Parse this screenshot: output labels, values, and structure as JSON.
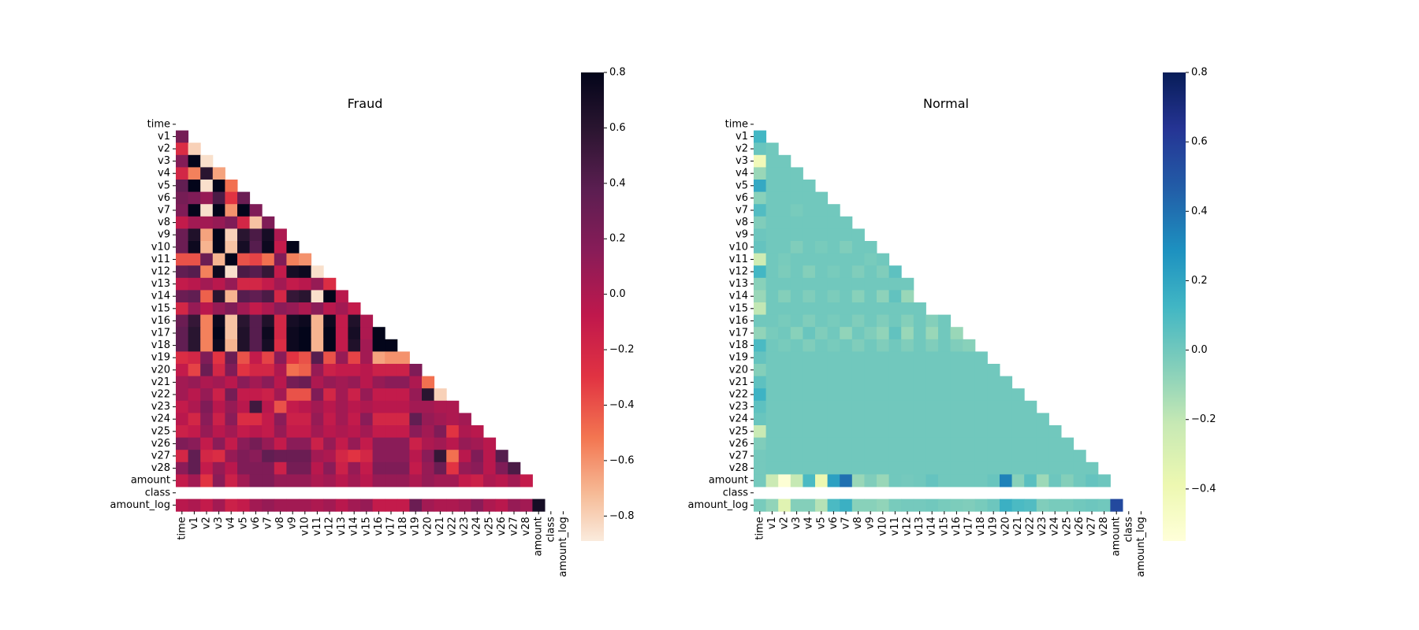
{
  "features": [
    "time",
    "v1",
    "v2",
    "v3",
    "v4",
    "v5",
    "v6",
    "v7",
    "v8",
    "v9",
    "v10",
    "v11",
    "v12",
    "v13",
    "v14",
    "v15",
    "v16",
    "v17",
    "v18",
    "v19",
    "v20",
    "v21",
    "v22",
    "v23",
    "v24",
    "v25",
    "v26",
    "v27",
    "v28",
    "amount",
    "class",
    "amount_log"
  ],
  "chart_data": [
    {
      "type": "heatmap",
      "title": "Fraud",
      "colormap": "rocket_r",
      "mask": "upper-triangle",
      "vmin": -0.89,
      "vmax": 0.8,
      "colorbar_ticks": [
        0.8,
        0.6,
        0.4,
        0.2,
        0.0,
        -0.2,
        -0.4,
        -0.6,
        -0.8
      ],
      "colorbar_tick_labels": [
        "0.8",
        "0.6",
        "0.4",
        "0.2",
        "0.0",
        "−0.2",
        "−0.4",
        "−0.6",
        "−0.8"
      ],
      "xlabels": [
        "time",
        "v1",
        "v2",
        "v3",
        "v4",
        "v5",
        "v6",
        "v7",
        "v8",
        "v9",
        "v10",
        "v11",
        "v12",
        "v13",
        "v14",
        "v15",
        "v16",
        "v17",
        "v18",
        "v19",
        "v20",
        "v21",
        "v22",
        "v23",
        "v24",
        "v25",
        "v26",
        "v27",
        "v28",
        "amount",
        "class",
        "amount_log"
      ],
      "ylabels": [
        "time",
        "v1",
        "v2",
        "v3",
        "v4",
        "v5",
        "v6",
        "v7",
        "v8",
        "v9",
        "v10",
        "v11",
        "v12",
        "v13",
        "v14",
        "v15",
        "v16",
        "v17",
        "v18",
        "v19",
        "v20",
        "v21",
        "v22",
        "v23",
        "v24",
        "v25",
        "v26",
        "v27",
        "v28",
        "amount",
        "class",
        "amount_log"
      ],
      "missing_row": "class",
      "rows": [
        [],
        [
          0.25
        ],
        [
          -0.25,
          -0.8
        ],
        [
          0.18,
          0.8,
          -0.85
        ],
        [
          -0.2,
          -0.55,
          0.6,
          -0.65
        ],
        [
          0.35,
          0.8,
          -0.85,
          0.8,
          -0.5
        ],
        [
          0.25,
          0.2,
          0.1,
          0.45,
          -0.3,
          0.3
        ],
        [
          0.2,
          0.8,
          -0.85,
          0.8,
          -0.6,
          0.8,
          0.2
        ],
        [
          -0.1,
          0.05,
          0.05,
          0.1,
          0.2,
          -0.2,
          -0.75,
          0.2
        ],
        [
          0.3,
          0.65,
          -0.65,
          0.8,
          -0.8,
          0.6,
          0.45,
          0.7,
          0.0
        ],
        [
          0.3,
          0.75,
          -0.7,
          0.8,
          -0.75,
          0.7,
          0.4,
          0.75,
          -0.1,
          0.8
        ],
        [
          -0.4,
          -0.4,
          0.3,
          -0.7,
          0.8,
          -0.4,
          -0.35,
          -0.5,
          0.2,
          -0.55,
          -0.6
        ],
        [
          0.35,
          0.4,
          -0.55,
          0.75,
          -0.85,
          0.45,
          0.4,
          0.55,
          -0.1,
          0.7,
          0.75,
          -0.85
        ],
        [
          -0.1,
          -0.05,
          0.05,
          -0.05,
          0.1,
          -0.2,
          -0.2,
          -0.1,
          0.05,
          -0.1,
          -0.05,
          0.1,
          -0.25
        ],
        [
          0.3,
          0.35,
          -0.45,
          0.6,
          -0.7,
          0.4,
          0.35,
          0.45,
          -0.2,
          0.55,
          0.6,
          -0.85,
          0.8,
          -0.05
        ],
        [
          -0.2,
          0.1,
          -0.05,
          0.1,
          0.2,
          0.05,
          -0.1,
          0.0,
          0.15,
          0.1,
          0.0,
          0.15,
          -0.05,
          0.05,
          -0.1
        ],
        [
          0.3,
          0.55,
          -0.55,
          0.75,
          -0.75,
          0.6,
          0.4,
          0.65,
          -0.2,
          0.7,
          0.75,
          -0.7,
          0.75,
          -0.1,
          0.65,
          0.0
        ],
        [
          0.35,
          0.6,
          -0.55,
          0.8,
          -0.75,
          0.65,
          0.4,
          0.75,
          -0.2,
          0.75,
          0.8,
          -0.7,
          0.8,
          -0.1,
          0.7,
          0.0,
          0.8
        ],
        [
          0.35,
          0.6,
          -0.55,
          0.75,
          -0.7,
          0.65,
          0.4,
          0.7,
          -0.25,
          0.75,
          0.8,
          -0.7,
          0.8,
          -0.1,
          0.65,
          0.05,
          0.8,
          0.8
        ],
        [
          -0.25,
          -0.2,
          0.2,
          -0.3,
          0.3,
          -0.4,
          -0.1,
          -0.35,
          0.15,
          -0.3,
          -0.4,
          0.4,
          -0.4,
          0.1,
          -0.35,
          0.05,
          -0.65,
          -0.6,
          -0.6
        ],
        [
          -0.1,
          -0.35,
          0.3,
          -0.2,
          0.2,
          -0.3,
          -0.2,
          -0.2,
          0.0,
          -0.5,
          -0.45,
          0.1,
          -0.15,
          -0.1,
          -0.1,
          -0.05,
          -0.15,
          -0.15,
          -0.15,
          0.2
        ],
        [
          0.05,
          0.1,
          0.0,
          0.05,
          -0.05,
          0.15,
          0.05,
          0.15,
          -0.05,
          0.25,
          0.3,
          0.0,
          0.1,
          0.05,
          0.1,
          -0.05,
          0.1,
          0.15,
          0.15,
          0.0,
          -0.5
        ],
        [
          0.05,
          -0.05,
          0.1,
          -0.15,
          0.25,
          -0.1,
          -0.1,
          -0.15,
          0.05,
          -0.4,
          -0.4,
          0.2,
          -0.2,
          0.05,
          -0.15,
          0.1,
          -0.1,
          -0.1,
          -0.1,
          0.1,
          0.6,
          -0.8
        ],
        [
          -0.1,
          0.0,
          0.2,
          -0.05,
          0.1,
          -0.05,
          0.5,
          -0.05,
          -0.4,
          -0.1,
          -0.05,
          0.05,
          -0.05,
          0.05,
          -0.05,
          0.0,
          -0.05,
          -0.05,
          -0.05,
          0.05,
          0.05,
          0.0,
          0.0
        ],
        [
          -0.05,
          -0.2,
          0.15,
          -0.15,
          0.15,
          -0.25,
          -0.25,
          -0.1,
          0.15,
          -0.15,
          -0.15,
          0.1,
          -0.1,
          0.05,
          -0.1,
          0.15,
          -0.2,
          -0.2,
          -0.2,
          0.35,
          0.1,
          0.05,
          0.0,
          0.05
        ],
        [
          -0.15,
          -0.1,
          0.1,
          -0.05,
          0.05,
          -0.1,
          -0.05,
          -0.1,
          0.1,
          -0.1,
          -0.1,
          0.05,
          -0.05,
          0.0,
          -0.05,
          0.05,
          -0.1,
          -0.1,
          -0.1,
          0.15,
          0.05,
          0.2,
          -0.3,
          0.0,
          -0.05
        ],
        [
          0.2,
          0.15,
          -0.1,
          0.15,
          -0.1,
          0.15,
          0.25,
          0.1,
          -0.1,
          0.15,
          0.15,
          -0.15,
          0.1,
          -0.1,
          0.1,
          -0.1,
          0.15,
          0.15,
          0.15,
          -0.15,
          0.0,
          0.05,
          -0.05,
          0.1,
          0.05,
          -0.05
        ],
        [
          -0.2,
          0.35,
          -0.2,
          -0.25,
          0.1,
          0.2,
          0.15,
          0.35,
          0.3,
          0.3,
          0.3,
          0.05,
          0.0,
          -0.2,
          -0.3,
          -0.2,
          0.15,
          0.15,
          0.15,
          -0.05,
          0.15,
          0.55,
          -0.5,
          -0.05,
          0.2,
          -0.05,
          0.4
        ],
        [
          0.15,
          0.35,
          -0.1,
          0.1,
          -0.05,
          0.2,
          0.2,
          0.2,
          -0.15,
          0.25,
          0.25,
          -0.05,
          0.15,
          -0.15,
          0.1,
          -0.1,
          0.2,
          0.2,
          0.2,
          -0.1,
          0.1,
          0.3,
          -0.3,
          0.1,
          0.15,
          -0.05,
          0.2,
          0.45
        ],
        [
          -0.1,
          0.05,
          -0.3,
          0.15,
          -0.15,
          0.05,
          0.2,
          0.2,
          0.1,
          0.1,
          0.1,
          0.0,
          0.05,
          -0.05,
          0.05,
          -0.05,
          0.1,
          0.1,
          0.1,
          0.0,
          0.1,
          0.05,
          0.05,
          -0.1,
          -0.15,
          0.0,
          -0.05,
          0.05,
          -0.1
        ],
        [],
        [
          -0.05,
          0.0,
          -0.1,
          0.05,
          -0.15,
          -0.1,
          0.05,
          0.1,
          0.05,
          0.05,
          0.05,
          0.0,
          0.05,
          -0.05,
          0.05,
          0.1,
          -0.1,
          -0.1,
          -0.1,
          0.3,
          0.05,
          0.0,
          0.0,
          0.05,
          0.15,
          0.0,
          -0.05,
          0.1,
          0.05,
          0.7,
          null
        ]
      ]
    },
    {
      "type": "heatmap",
      "title": "Normal",
      "colormap": "YlGnBu",
      "mask": "upper-triangle",
      "vmin": -0.55,
      "vmax": 0.8,
      "colorbar_ticks": [
        0.8,
        0.6,
        0.4,
        0.2,
        0.0,
        -0.2,
        -0.4
      ],
      "colorbar_tick_labels": [
        "0.8",
        "0.6",
        "0.4",
        "0.2",
        "0.0",
        "−0.2",
        "−0.4"
      ],
      "xlabels": [
        "time",
        "v1",
        "v2",
        "v3",
        "v4",
        "v5",
        "v6",
        "v7",
        "v8",
        "v9",
        "v10",
        "v11",
        "v12",
        "v13",
        "v14",
        "v15",
        "v16",
        "v17",
        "v18",
        "v19",
        "v20",
        "v21",
        "v22",
        "v23",
        "v24",
        "v25",
        "v26",
        "v27",
        "v28",
        "amount",
        "class",
        "amount_log"
      ],
      "ylabels": [
        "time",
        "v1",
        "v2",
        "v3",
        "v4",
        "v5",
        "v6",
        "v7",
        "v8",
        "v9",
        "v10",
        "v11",
        "v12",
        "v13",
        "v14",
        "v15",
        "v16",
        "v17",
        "v18",
        "v19",
        "v20",
        "v21",
        "v22",
        "v23",
        "v24",
        "v25",
        "v26",
        "v27",
        "v28",
        "amount",
        "class",
        "amount_log"
      ],
      "missing_row": "class",
      "rows": [
        [],
        [
          0.12
        ],
        [
          0.02,
          0.0
        ],
        [
          -0.42,
          0.0,
          0.0
        ],
        [
          -0.1,
          0.0,
          0.0,
          0.0
        ],
        [
          0.18,
          0.0,
          0.0,
          0.0,
          0.0
        ],
        [
          -0.06,
          0.0,
          0.0,
          0.0,
          0.0,
          0.0
        ],
        [
          0.08,
          0.0,
          0.0,
          -0.02,
          0.0,
          0.0,
          0.0
        ],
        [
          -0.04,
          0.0,
          0.0,
          0.0,
          0.0,
          0.0,
          0.0,
          0.0
        ],
        [
          0.01,
          0.0,
          0.0,
          0.0,
          0.0,
          0.0,
          0.0,
          0.0,
          0.0
        ],
        [
          0.03,
          0.0,
          0.0,
          -0.04,
          0.0,
          -0.02,
          0.0,
          -0.04,
          0.0,
          0.0
        ],
        [
          -0.25,
          0.0,
          -0.02,
          0.0,
          0.0,
          0.0,
          0.0,
          0.0,
          0.0,
          -0.02,
          0.0
        ],
        [
          0.12,
          0.0,
          -0.03,
          0.0,
          -0.05,
          0.0,
          -0.02,
          0.0,
          -0.04,
          0.0,
          -0.04,
          0.05
        ],
        [
          -0.06,
          0.0,
          0.0,
          0.0,
          0.0,
          0.0,
          0.0,
          0.0,
          0.0,
          0.0,
          0.0,
          0.0,
          0.0
        ],
        [
          -0.1,
          0.0,
          -0.05,
          0.0,
          -0.04,
          0.0,
          -0.03,
          0.0,
          -0.06,
          0.0,
          -0.07,
          0.04,
          -0.1
        ],
        [
          -0.2,
          0.0,
          0.0,
          0.0,
          0.0,
          0.0,
          0.0,
          0.0,
          0.0,
          0.0,
          0.0,
          0.0,
          0.0,
          0.0
        ],
        [
          0.0,
          0.0,
          -0.02,
          0.0,
          -0.04,
          0.0,
          -0.02,
          0.0,
          -0.04,
          0.0,
          -0.04,
          0.0,
          -0.05,
          0.0,
          -0.05,
          0.0
        ],
        [
          -0.08,
          -0.02,
          0.0,
          -0.06,
          0.02,
          -0.04,
          0.0,
          -0.08,
          0.0,
          -0.04,
          -0.08,
          0.04,
          -0.1,
          0.0,
          -0.1,
          0.0,
          -0.1
        ],
        [
          0.1,
          0.0,
          -0.02,
          0.0,
          -0.04,
          0.0,
          -0.02,
          0.0,
          -0.04,
          0.0,
          -0.04,
          0.0,
          -0.04,
          0.0,
          -0.04,
          0.0,
          -0.04,
          -0.06
        ],
        [
          0.03,
          0.0,
          0.0,
          0.0,
          0.0,
          0.0,
          0.0,
          0.0,
          0.0,
          0.0,
          0.0,
          0.0,
          0.0,
          0.0,
          0.0,
          0.0,
          0.0,
          0.0,
          0.0
        ],
        [
          -0.05,
          0.0,
          0.0,
          0.0,
          0.0,
          0.0,
          0.0,
          0.0,
          0.0,
          0.0,
          0.0,
          0.0,
          0.0,
          0.0,
          0.0,
          0.0,
          0.0,
          0.0,
          0.0,
          0.0
        ],
        [
          0.05,
          0.0,
          0.0,
          0.0,
          0.0,
          0.0,
          0.0,
          0.0,
          0.0,
          0.0,
          0.0,
          0.0,
          0.0,
          0.0,
          0.0,
          0.0,
          0.0,
          0.0,
          0.0,
          0.0,
          0.0
        ],
        [
          0.14,
          0.0,
          0.0,
          0.0,
          0.0,
          0.0,
          0.0,
          0.0,
          0.0,
          0.0,
          0.0,
          0.0,
          0.0,
          0.0,
          0.0,
          0.0,
          0.0,
          0.0,
          0.0,
          0.0,
          0.0,
          0.0
        ],
        [
          0.05,
          0.0,
          0.0,
          0.0,
          0.0,
          0.0,
          0.0,
          0.0,
          0.0,
          0.0,
          0.0,
          0.0,
          0.0,
          0.0,
          0.0,
          0.0,
          0.0,
          0.0,
          0.0,
          0.0,
          0.0,
          0.0,
          0.0
        ],
        [
          0.02,
          0.0,
          0.0,
          0.0,
          0.0,
          0.0,
          0.0,
          0.0,
          0.0,
          0.0,
          0.0,
          0.0,
          0.0,
          0.0,
          0.0,
          0.0,
          0.0,
          0.0,
          0.0,
          0.0,
          0.0,
          0.0,
          0.0,
          0.0
        ],
        [
          -0.22,
          0.0,
          0.0,
          0.0,
          0.0,
          0.0,
          0.0,
          0.0,
          0.0,
          0.0,
          0.0,
          0.0,
          0.0,
          0.0,
          0.0,
          0.0,
          0.0,
          0.0,
          0.0,
          0.0,
          0.0,
          0.0,
          0.0,
          0.0,
          0.0
        ],
        [
          -0.04,
          0.0,
          0.0,
          0.0,
          0.0,
          0.0,
          0.0,
          0.0,
          0.0,
          0.0,
          0.0,
          0.0,
          0.0,
          0.0,
          0.0,
          0.0,
          0.0,
          0.0,
          0.0,
          0.0,
          0.0,
          0.0,
          0.0,
          0.0,
          0.0,
          0.0
        ],
        [
          -0.01,
          0.0,
          0.0,
          0.0,
          0.0,
          0.0,
          0.0,
          0.0,
          0.0,
          0.0,
          0.0,
          0.0,
          0.0,
          0.0,
          0.0,
          0.0,
          0.0,
          0.0,
          0.0,
          0.0,
          0.0,
          0.0,
          0.0,
          0.0,
          0.0,
          0.0,
          0.0
        ],
        [
          -0.01,
          0.0,
          0.0,
          0.0,
          0.0,
          0.0,
          0.0,
          0.0,
          0.0,
          0.0,
          0.0,
          0.0,
          0.0,
          0.0,
          0.0,
          0.0,
          0.0,
          0.0,
          0.0,
          0.0,
          0.0,
          0.0,
          0.0,
          0.0,
          0.0,
          0.0,
          0.0,
          0.0
        ],
        [
          -0.01,
          -0.23,
          -0.53,
          -0.21,
          0.1,
          -0.39,
          0.22,
          0.4,
          -0.1,
          -0.04,
          -0.1,
          0.0,
          -0.01,
          0.0,
          0.03,
          0.0,
          0.0,
          0.0,
          0.0,
          0.02,
          0.34,
          -0.06,
          0.06,
          -0.11,
          0.01,
          -0.05,
          0.0,
          0.03,
          0.01
        ],
        [],
        [
          -0.02,
          -0.08,
          -0.33,
          -0.05,
          -0.05,
          -0.17,
          0.1,
          0.15,
          -0.06,
          -0.06,
          -0.08,
          -0.02,
          -0.01,
          -0.01,
          0.0,
          -0.02,
          -0.03,
          -0.04,
          -0.02,
          0.01,
          0.15,
          0.1,
          0.08,
          -0.04,
          -0.02,
          -0.02,
          0.0,
          0.01,
          0.0,
          0.55,
          null
        ]
      ]
    }
  ]
}
